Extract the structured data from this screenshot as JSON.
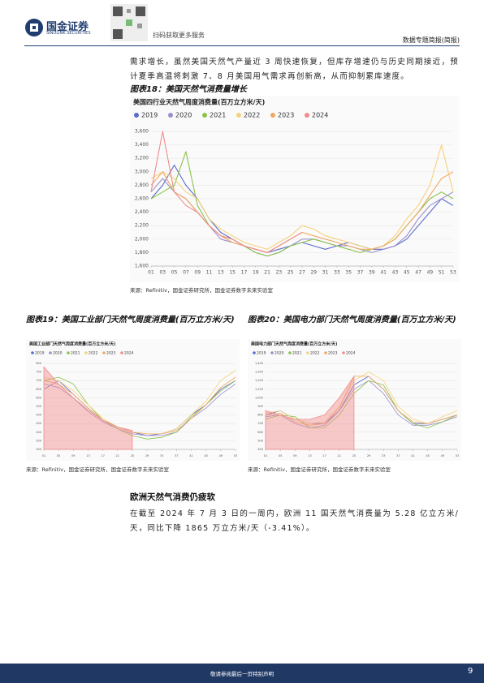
{
  "document": {
    "header": {
      "brand": "国金证券",
      "brand_en": "SINOLINK SECURITIES",
      "qr_text": "扫码获取更多服务",
      "report_type": "数据专题简报(简报)"
    },
    "paragraph1": "需求增长，虽然美国天然气产量近 3 周快速恢复，但库存增速仍与历史同期接近，预计夏季高温将刺激 7、8 月美国用气需求再创新高，从而抑制累库速度。",
    "section_heading": "欧洲天然气消费仍疲软",
    "paragraph2": "在截至 2024 年 7 月 3 日的一周内，欧洲 11 国天然气消费量为 5.28 亿立方米/天，同比下降 1865 万立方米/天（-3.41%）。",
    "footer": {
      "disclaimer": "敬请参阅最后一页特别声明",
      "page": "9"
    }
  },
  "chart_data": [
    {
      "type": "line",
      "caption": "图表18：美国天然气消费量增长",
      "title": "美国四行业天然气周度消费量(百万立方米/天)",
      "source": "来源：Refinitiv，国金证券研究所，国金证券数字未来实验室",
      "categories": [
        "01",
        "03",
        "05",
        "07",
        "09",
        "11",
        "13",
        "15",
        "17",
        "19",
        "21",
        "23",
        "25",
        "27",
        "29",
        "31",
        "33",
        "35",
        "37",
        "39",
        "41",
        "43",
        "45",
        "47",
        "49",
        "51",
        "53"
      ],
      "ylim": [
        1600,
        3600
      ],
      "yticks": [
        {
          "value": 1600,
          "label": "1,600"
        },
        {
          "value": 1800,
          "label": "1,800"
        },
        {
          "value": 2000,
          "label": "2,000"
        },
        {
          "value": 2200,
          "label": "2,200"
        },
        {
          "value": 2400,
          "label": "2,400"
        },
        {
          "value": 2600,
          "label": "2,600"
        },
        {
          "value": 2800,
          "label": "2,800"
        },
        {
          "value": 3000,
          "label": "3,000"
        },
        {
          "value": 3200,
          "label": "3,200"
        },
        {
          "value": 3400,
          "label": "3,400"
        },
        {
          "value": 3600,
          "label": "3,600"
        }
      ],
      "grid": true,
      "series": [
        {
          "name": "2019",
          "color": "#5b6bc9",
          "values": [
            2600,
            2800,
            3100,
            2800,
            2600,
            2300,
            2100,
            2000,
            1900,
            1850,
            1800,
            1850,
            1900,
            1950,
            1900,
            1850,
            1900,
            1950,
            1900,
            1850,
            1850,
            1900,
            2000,
            2200,
            2400,
            2600,
            2500
          ]
        },
        {
          "name": "2020",
          "color": "#9b8fd0",
          "values": [
            2700,
            2900,
            2700,
            2600,
            2400,
            2200,
            2000,
            1950,
            1900,
            1800,
            1750,
            1800,
            1900,
            2000,
            2000,
            1950,
            1900,
            1900,
            1850,
            1800,
            1850,
            1900,
            2050,
            2300,
            2500,
            2600,
            2700
          ]
        },
        {
          "name": "2021",
          "color": "#8bc34a",
          "values": [
            2600,
            2700,
            2800,
            3300,
            2500,
            2200,
            2050,
            2000,
            1900,
            1800,
            1750,
            1800,
            1900,
            1950,
            2000,
            1950,
            1900,
            1850,
            1800,
            1850,
            1900,
            2000,
            2200,
            2400,
            2600,
            2700,
            2600
          ]
        },
        {
          "name": "2022",
          "color": "#f5d27a",
          "values": [
            2900,
            3000,
            2900,
            2700,
            2600,
            2300,
            2150,
            2050,
            1950,
            1900,
            1850,
            1950,
            2050,
            2200,
            2150,
            2050,
            2000,
            1950,
            1900,
            1850,
            1900,
            2050,
            2300,
            2500,
            2800,
            3400,
            2700
          ]
        },
        {
          "name": "2023",
          "color": "#f0a860",
          "values": [
            2800,
            3000,
            2700,
            2600,
            2400,
            2200,
            2050,
            1950,
            1900,
            1850,
            1800,
            1900,
            2000,
            2100,
            2050,
            2000,
            1950,
            1900,
            1850,
            1850,
            1900,
            2000,
            2200,
            2400,
            2650,
            2900,
            3000
          ]
        },
        {
          "name": "2024",
          "color": "#f28b8b",
          "values": [
            2700,
            3600,
            2700,
            2500,
            2400,
            2200,
            2050,
            2000,
            1900,
            1850,
            1800,
            1900,
            2000,
            2100,
            null,
            null,
            null,
            null,
            null,
            null,
            null,
            null,
            null,
            null,
            null,
            null,
            null
          ]
        }
      ]
    },
    {
      "type": "line",
      "caption": "图表19：美国工业部门天然气周度消费量(百万立方米/天)",
      "title": "美国工业部门天然气周度消费量(百万立方米/天)",
      "source": "来源：Refinitiv，国金证券研究所，国金证券数字未来实验室",
      "categories": [
        "01",
        "05",
        "09",
        "13",
        "17",
        "21",
        "25",
        "29",
        "33",
        "37",
        "41",
        "45",
        "49",
        "53"
      ],
      "ylim": [
        300,
        800
      ],
      "yticks": [
        300,
        350,
        400,
        450,
        500,
        550,
        600,
        650,
        700,
        750,
        800
      ],
      "grid": true,
      "series": [
        {
          "name": "2019",
          "color": "#5b6bc9",
          "values": [
            650,
            700,
            620,
            540,
            470,
            430,
            400,
            380,
            390,
            420,
            500,
            560,
            650,
            700
          ]
        },
        {
          "name": "2020",
          "color": "#9b8fd0",
          "values": [
            680,
            660,
            600,
            520,
            460,
            420,
            390,
            380,
            380,
            400,
            480,
            540,
            620,
            680
          ]
        },
        {
          "name": "2021",
          "color": "#8bc34a",
          "values": [
            700,
            720,
            680,
            560,
            470,
            420,
            380,
            360,
            370,
            400,
            490,
            560,
            640,
            700
          ]
        },
        {
          "name": "2022",
          "color": "#f5d27a",
          "values": [
            720,
            700,
            640,
            560,
            480,
            430,
            400,
            390,
            390,
            420,
            500,
            580,
            700,
            760
          ]
        },
        {
          "name": "2023",
          "color": "#f0a860",
          "values": [
            700,
            680,
            620,
            540,
            470,
            430,
            400,
            390,
            390,
            410,
            480,
            560,
            660,
            720
          ]
        },
        {
          "name": "2024",
          "color": "#f28b8b",
          "area": true,
          "values": [
            780,
            680,
            600,
            530,
            470,
            430,
            410,
            null,
            null,
            null,
            null,
            null,
            null,
            null
          ]
        }
      ]
    },
    {
      "type": "line",
      "caption": "图表20：美国电力部门天然气周度消费量(百万立方米/天)",
      "title": "美国电力部门天然气周度消费量(百万立方米/天)",
      "source": "来源：Refinitiv，国金证券研究所，国金证券数字未来实验室",
      "categories": [
        "01",
        "05",
        "09",
        "13",
        "17",
        "21",
        "25",
        "29",
        "33",
        "37",
        "41",
        "45",
        "49",
        "53"
      ],
      "ylim": [
        400,
        1400
      ],
      "yticks": [
        400,
        500,
        600,
        700,
        800,
        900,
        {
          "value": 1000,
          "label": "1,000"
        },
        {
          "value": 1100,
          "label": "1,100"
        },
        {
          "value": 1200,
          "label": "1,200"
        },
        {
          "value": 1300,
          "label": "1,300"
        },
        {
          "value": 1400,
          "label": "1,400"
        }
      ],
      "grid": true,
      "series": [
        {
          "name": "2019",
          "color": "#5b6bc9",
          "values": [
            800,
            850,
            750,
            700,
            700,
            850,
            1150,
            1250,
            1100,
            850,
            700,
            700,
            750,
            800
          ]
        },
        {
          "name": "2020",
          "color": "#9b8fd0",
          "values": [
            780,
            800,
            700,
            650,
            680,
            850,
            1100,
            1200,
            1050,
            800,
            680,
            680,
            720,
            780
          ]
        },
        {
          "name": "2021",
          "color": "#8bc34a",
          "values": [
            750,
            800,
            780,
            650,
            650,
            800,
            1050,
            1200,
            1150,
            850,
            700,
            650,
            720,
            800
          ]
        },
        {
          "name": "2022",
          "color": "#f5d27a",
          "values": [
            820,
            850,
            750,
            700,
            720,
            900,
            1200,
            1300,
            1200,
            900,
            750,
            700,
            780,
            850
          ]
        },
        {
          "name": "2023",
          "color": "#f0a860",
          "values": [
            800,
            820,
            720,
            680,
            700,
            880,
            1250,
            1250,
            1100,
            850,
            720,
            700,
            750,
            800
          ]
        },
        {
          "name": "2024",
          "color": "#f28b8b",
          "area": true,
          "values": [
            850,
            800,
            750,
            750,
            800,
            1000,
            1250,
            null,
            null,
            null,
            null,
            null,
            null,
            null
          ]
        }
      ]
    }
  ]
}
